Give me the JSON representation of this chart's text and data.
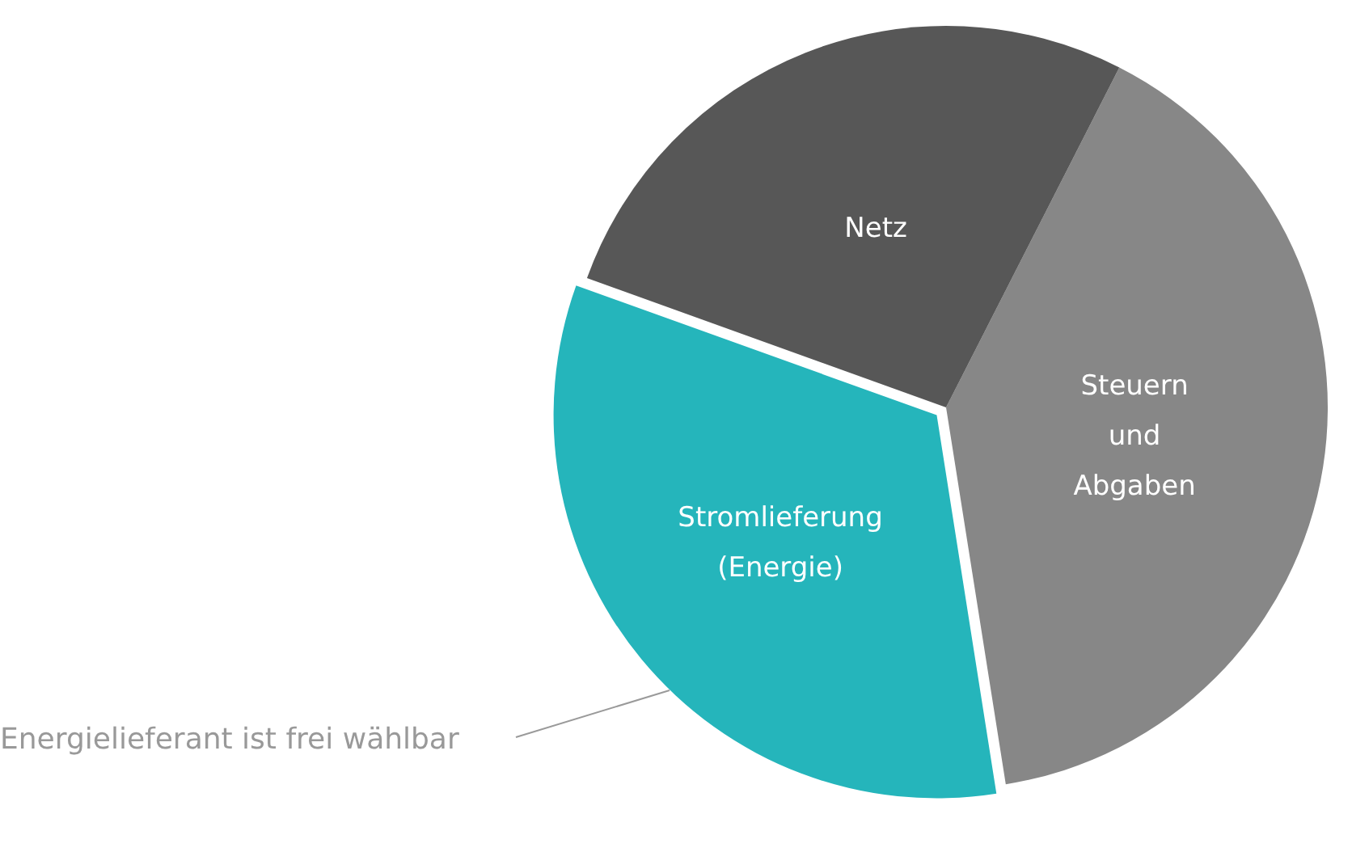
{
  "chart_data": {
    "type": "pie",
    "categories": [
      "Steuern und Abgaben",
      "Stromlieferung (Energie)",
      "Netz"
    ],
    "values": [
      40,
      33,
      27
    ],
    "colors": [
      "#878787",
      "#25b5bb",
      "#575757"
    ],
    "legend": false,
    "annotations": [
      "Energielieferant ist frei wählbar"
    ]
  }
}
